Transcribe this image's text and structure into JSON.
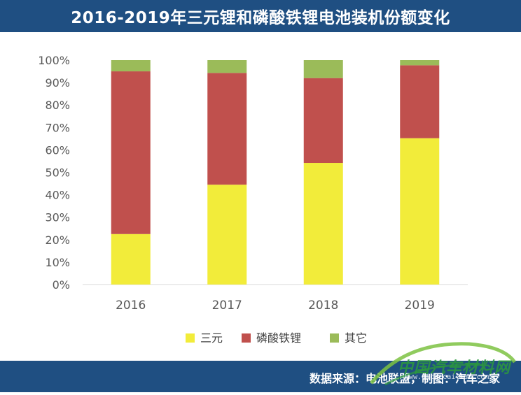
{
  "header": {
    "title": "2016-2019年三元锂和磷酸铁锂电池装机份额变化"
  },
  "chart_data": {
    "type": "bar",
    "stacked": true,
    "title": "2016-2019年三元锂和磷酸铁锂电池装机份额变化",
    "categories": [
      "2016",
      "2017",
      "2018",
      "2019"
    ],
    "series": [
      {
        "name": "三元",
        "color": "#f2ec3a",
        "values": [
          22.5,
          44.5,
          54.2,
          65.2
        ]
      },
      {
        "name": "磷酸铁锂",
        "color": "#c0504d",
        "values": [
          72.5,
          49.8,
          37.8,
          32.5
        ]
      },
      {
        "name": "其它",
        "color": "#9bbb59",
        "values": [
          5.0,
          5.7,
          8.0,
          2.3
        ]
      }
    ],
    "ylim": [
      0,
      100
    ],
    "yticks": [
      "0%",
      "10%",
      "20%",
      "30%",
      "40%",
      "50%",
      "60%",
      "70%",
      "80%",
      "90%",
      "100%"
    ],
    "xlabel": "",
    "ylabel": "",
    "legend_position": "bottom",
    "grid": false
  },
  "footer": {
    "source": "数据来源：电池联盟，制图：汽车之家"
  },
  "watermark": {
    "text": "中国汽车材料网",
    "url": "www.qichecailiao.com"
  }
}
